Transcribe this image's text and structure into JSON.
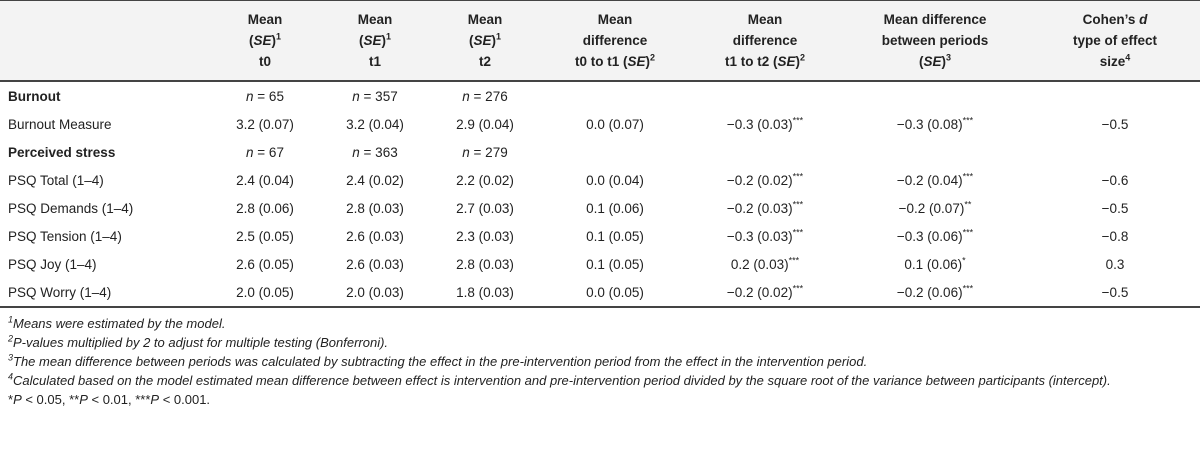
{
  "headers": [
    {
      "line1": "",
      "se_prefix": "",
      "se_suffix": "",
      "sup": "",
      "line3": ""
    },
    {
      "line1": "Mean",
      "se_prefix": "(",
      "se": "SE",
      "se_suffix": ")",
      "sup": "1",
      "line3": "t0"
    },
    {
      "line1": "Mean",
      "se_prefix": "(",
      "se": "SE",
      "se_suffix": ")",
      "sup": "1",
      "line3": "t1"
    },
    {
      "line1": "Mean",
      "se_prefix": "(",
      "se": "SE",
      "se_suffix": ")",
      "sup": "1",
      "line3": "t2"
    },
    {
      "line1": "Mean",
      "line2": "difference",
      "line3_pre": "t0 to t1 (",
      "se": "SE",
      "line3_post": ")",
      "sup": "2"
    },
    {
      "line1": "Mean",
      "line2": "difference",
      "line3_pre": "t1 to t2 (",
      "se": "SE",
      "line3_post": ")",
      "sup": "2"
    },
    {
      "line1": "Mean difference",
      "line2": "between periods",
      "line3_pre": "(",
      "se": "SE",
      "line3_post": ")",
      "sup": "3"
    },
    {
      "line1": "Cohen’s ",
      "line1_it": "d",
      "line2": "type of effect",
      "line3_pre": "size",
      "sup": "4"
    }
  ],
  "rows": [
    {
      "type": "group",
      "label": "Burnout",
      "n_prefix": "n",
      "cells": [
        " = 65",
        " = 357",
        " = 276"
      ]
    },
    {
      "type": "data",
      "label": "Burnout Measure",
      "cells": [
        "3.2 (0.07)",
        "3.2 (0.04)",
        "2.9 (0.04)",
        "0.0 (0.07)",
        "−0.3 (0.03)",
        "−0.3 (0.08)",
        "−0.5"
      ],
      "stars": [
        "",
        "",
        "",
        "",
        "***",
        "***",
        ""
      ]
    },
    {
      "type": "group",
      "label": "Perceived stress",
      "n_prefix": "n",
      "cells": [
        " = 67",
        " = 363",
        " = 279"
      ]
    },
    {
      "type": "data",
      "label": "PSQ Total (1–4)",
      "cells": [
        "2.4 (0.04)",
        "2.4 (0.02)",
        "2.2 (0.02)",
        "0.0 (0.04)",
        "−0.2 (0.02)",
        "−0.2 (0.04)",
        "−0.6"
      ],
      "stars": [
        "",
        "",
        "",
        "",
        "***",
        "***",
        ""
      ]
    },
    {
      "type": "data",
      "label": "PSQ Demands (1–4)",
      "cells": [
        "2.8 (0.06)",
        "2.8 (0.03)",
        "2.7 (0.03)",
        "0.1 (0.06)",
        "−0.2 (0.03)",
        "−0.2 (0.07)",
        "−0.5"
      ],
      "stars": [
        "",
        "",
        "",
        "",
        "***",
        "**",
        ""
      ]
    },
    {
      "type": "data",
      "label": "PSQ Tension (1–4)",
      "cells": [
        "2.5 (0.05)",
        "2.6 (0.03)",
        "2.3 (0.03)",
        "0.1 (0.05)",
        "−0.3 (0.03)",
        "−0.3 (0.06)",
        "−0.8"
      ],
      "stars": [
        "",
        "",
        "",
        "",
        "***",
        "***",
        ""
      ]
    },
    {
      "type": "data",
      "label": "PSQ Joy (1–4)",
      "cells": [
        "2.6 (0.05)",
        "2.6 (0.03)",
        "2.8 (0.03)",
        "0.1 (0.05)",
        "0.2 (0.03)",
        "0.1 (0.06)",
        "0.3"
      ],
      "stars": [
        "",
        "",
        "",
        "",
        "***",
        "*",
        ""
      ]
    },
    {
      "type": "data",
      "label": "PSQ Worry (1–4)",
      "cells": [
        "2.0 (0.05)",
        "2.0 (0.03)",
        "1.8 (0.03)",
        "0.0 (0.05)",
        "−0.2 (0.02)",
        "−0.2 (0.06)",
        "−0.5"
      ],
      "stars": [
        "",
        "",
        "",
        "",
        "***",
        "***",
        ""
      ]
    }
  ],
  "notes": [
    {
      "num": "1",
      "text": "Means were estimated by the model."
    },
    {
      "num": "2",
      "text": "P-values multiplied by 2 to adjust for multiple testing (Bonferroni)."
    },
    {
      "num": "3",
      "text": "The mean difference between periods was calculated by subtracting the effect in the pre-intervention period from the effect in the intervention period."
    },
    {
      "num": "4",
      "text": "Calculated based on the model estimated mean difference between effect is intervention and pre-intervention period divided by the square root of the variance between participants (intercept)."
    }
  ],
  "sig_note": {
    "s1": "*",
    "p1": "P",
    "t1": " < 0.05, ",
    "s2": "**",
    "p2": "P",
    "t2": " < 0.01, ",
    "s3": "***",
    "p3": "P",
    "t3": " < 0.001."
  }
}
